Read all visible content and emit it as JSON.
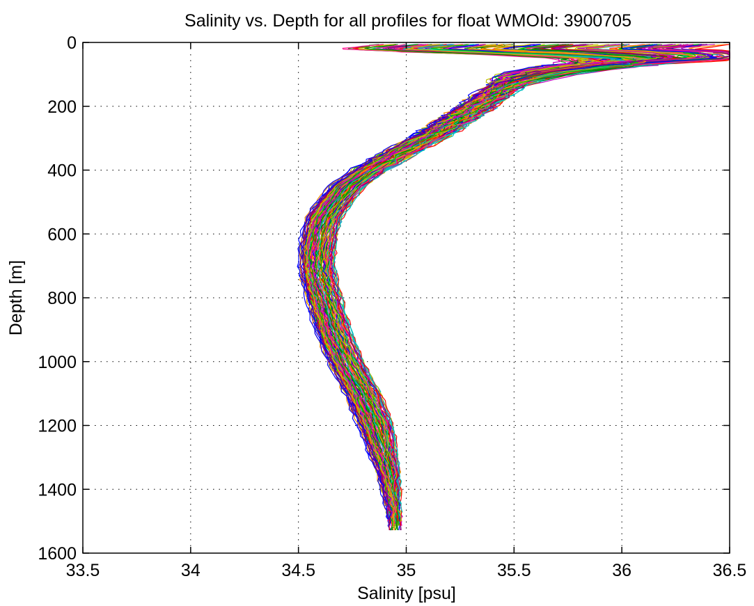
{
  "chart_data": {
    "type": "line",
    "title": "Salinity vs. Depth for all profiles for float WMOId: 3900705",
    "xlabel": "Salinity [psu]",
    "ylabel": "Depth [m]",
    "xlim": [
      33.5,
      36.5
    ],
    "ylim": [
      0,
      1600
    ],
    "y_reversed": true,
    "grid": true,
    "legend": "none",
    "xticks": [
      33.5,
      34,
      34.5,
      35,
      35.5,
      36,
      36.5
    ],
    "xtick_labels": [
      "33.5",
      "34",
      "34.5",
      "35",
      "35.5",
      "36",
      "36.5"
    ],
    "yticks": [
      0,
      200,
      400,
      600,
      800,
      1000,
      1200,
      1400,
      1600
    ],
    "ytick_labels": [
      "0",
      "200",
      "400",
      "600",
      "800",
      "1000",
      "1200",
      "1400",
      "1600"
    ],
    "series_colors": [
      "#0000ff",
      "#008000",
      "#ff0000",
      "#00bfbf",
      "#bf00bf",
      "#bfbf00",
      "#ff1493",
      "#ff8c00",
      "#00c000",
      "#800080"
    ],
    "num_profiles": 120,
    "mean_profile": {
      "depth": [
        5,
        20,
        30,
        40,
        50,
        60,
        75,
        90,
        110,
        130,
        160,
        200,
        250,
        300,
        350,
        400,
        450,
        500,
        550,
        600,
        650,
        700,
        750,
        800,
        850,
        900,
        950,
        1000,
        1050,
        1100,
        1150,
        1200,
        1250,
        1300,
        1350,
        1400,
        1450,
        1500
      ],
      "salinity": [
        35.7,
        35.5,
        35.8,
        36.05,
        36.15,
        36.05,
        35.85,
        35.68,
        35.55,
        35.48,
        35.41,
        35.33,
        35.22,
        35.1,
        34.96,
        34.83,
        34.73,
        34.67,
        34.62,
        34.6,
        34.59,
        34.59,
        34.6,
        34.62,
        34.64,
        34.66,
        34.69,
        34.72,
        34.76,
        34.8,
        34.83,
        34.86,
        34.88,
        34.9,
        34.92,
        34.93,
        34.94,
        34.95
      ]
    }
  }
}
